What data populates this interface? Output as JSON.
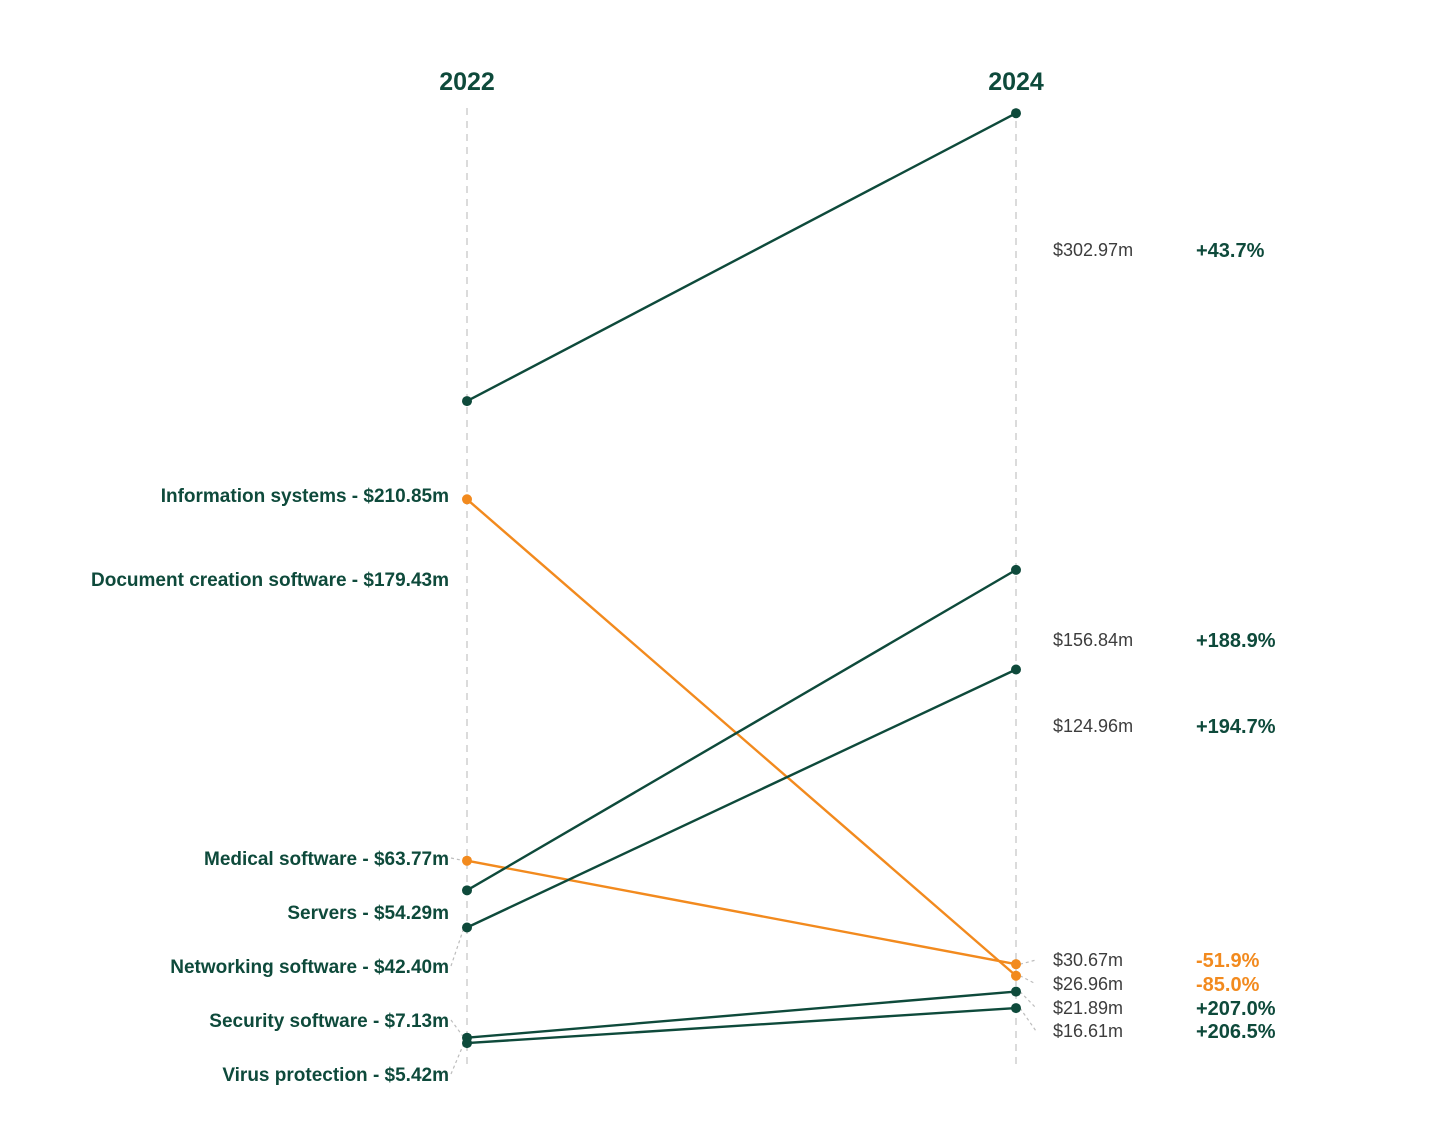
{
  "colors": {
    "increase": "#0e4a3b",
    "decrease": "#f28a1e",
    "axis": "#cfcfcf",
    "value_text": "#3d3d3d"
  },
  "chart_data": {
    "type": "slope",
    "x": [
      "2022",
      "2024"
    ],
    "ylim": [
      0,
      320
    ],
    "grid": false,
    "series": [
      {
        "name": "Information systems",
        "start": 210.85,
        "end": 302.97,
        "left_label": "Information systems - $210.85m",
        "right_value": "$302.97m",
        "change": "+43.7%",
        "trend": "increase"
      },
      {
        "name": "Document creation software",
        "start": 179.43,
        "end": 26.96,
        "left_label": "Document creation software - $179.43m",
        "right_value": "$26.96m",
        "change": "-85.0%",
        "trend": "decrease"
      },
      {
        "name": "Medical software",
        "start": 63.77,
        "end": 30.67,
        "left_label": "Medical software - $63.77m",
        "right_value": "$30.67m",
        "change": "-51.9%",
        "trend": "decrease"
      },
      {
        "name": "Servers",
        "start": 54.29,
        "end": 156.84,
        "left_label": "Servers - $54.29m",
        "right_value": "$156.84m",
        "change": "+188.9%",
        "trend": "increase"
      },
      {
        "name": "Networking software",
        "start": 42.4,
        "end": 124.96,
        "left_label": "Networking software - $42.40m",
        "right_value": "$124.96m",
        "change": "+194.7%",
        "trend": "increase"
      },
      {
        "name": "Security software",
        "start": 7.13,
        "end": 21.89,
        "left_label": "Security software - $7.13m",
        "right_value": "$21.89m",
        "change": "+207.0%",
        "trend": "increase"
      },
      {
        "name": "Virus protection",
        "start": 5.42,
        "end": 16.61,
        "left_label": "Virus protection - $5.42m",
        "right_value": "$16.61m",
        "change": "+206.5%",
        "trend": "increase"
      }
    ]
  }
}
